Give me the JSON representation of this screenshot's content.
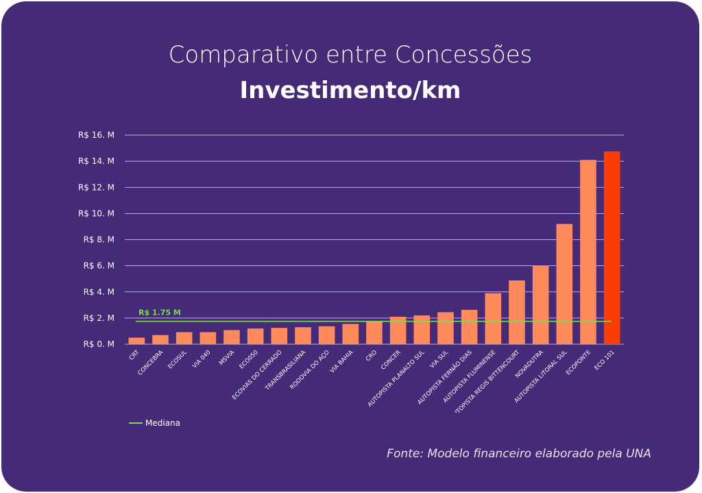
{
  "title_line1": "Comparativo entre Concessões",
  "title_line2": "Investimento/km",
  "source": "Fonte: Modelo financeiro elaborado pela UNA",
  "legend": {
    "median_label": "Mediana"
  },
  "colors": {
    "background": "#452a78",
    "bar": "#ff8a5b",
    "highlight": "#ff3d00",
    "median": "#7ed957",
    "grid": "#ffffff"
  },
  "chart_data": {
    "type": "bar",
    "title": "Comparativo entre Concessões Investimento/km",
    "categories": [
      "CRT",
      "CONCEBRA",
      "ECOSUL",
      "VIA 040",
      "MSVIA",
      "ECO050",
      "ECOVIAS DO CERRADO",
      "TRANSBRASILIANA",
      "RODOVIA DO AÇO",
      "VIA BAHIA",
      "CRO",
      "CONCER",
      "AUTOPISTA PLANALTO SUL",
      "VIA SUL",
      "AUTOPISTA FERNÃO DIAS",
      "AUTOPISTA FLUMINENSE",
      "AUTOPISTA REGIS BITTENCOURT",
      "NOVADUTRA",
      "AUTOPISTA LITORAL SUL",
      "ECOPONTE",
      "ECO 101"
    ],
    "values": [
      0.5,
      0.7,
      0.92,
      0.92,
      1.08,
      1.2,
      1.25,
      1.3,
      1.37,
      1.55,
      1.75,
      2.1,
      2.2,
      2.45,
      2.63,
      3.9,
      4.88,
      6.0,
      9.2,
      14.1,
      14.75
    ],
    "highlight_index": 20,
    "median": {
      "value": 1.75,
      "label": "R$ 1.75 M"
    },
    "y_ticks": [
      0,
      2,
      4,
      6,
      8,
      10,
      12,
      14,
      16
    ],
    "y_tick_labels": [
      "R$ 0. M",
      "R$ 2. M",
      "R$ 4. M",
      "R$ 6. M",
      "R$ 8. M",
      "R$ 10. M",
      "R$ 12. M",
      "R$ 14. M",
      "R$ 16. M"
    ],
    "ylim": [
      0,
      16
    ],
    "grid": true,
    "legend_position": "bottom-left"
  }
}
